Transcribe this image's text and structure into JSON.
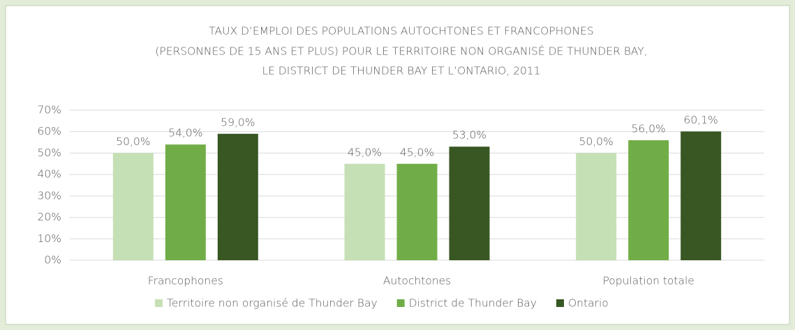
{
  "chart_data": {
    "type": "bar",
    "title": [
      "TAUX D’EMPLOI DES POPULATIONS AUTOCHTONES ET FRANCOPHONES",
      "(PERSONNES DE 15 ANS ET PLUS) POUR LE TERRITOIRE NON ORGANISÉ DE THUNDER BAY,",
      "LE DISTRICT DE THUNDER BAY ET L’ONTARIO, 2011"
    ],
    "categories": [
      "Francophones",
      "Autochtones",
      "Population totale"
    ],
    "series": [
      {
        "name": "Territoire non organisé de Thunder Bay",
        "color": "#c5e0b4",
        "values": [
          50.0,
          45.0,
          50.0
        ],
        "value_labels": [
          "50,0%",
          "45,0%",
          "50,0%"
        ]
      },
      {
        "name": "District de Thunder Bay",
        "color": "#70ad47",
        "values": [
          54.0,
          45.0,
          56.0
        ],
        "value_labels": [
          "54,0%",
          "45,0%",
          "56,0%"
        ]
      },
      {
        "name": "Ontario",
        "color": "#385723",
        "values": [
          59.0,
          53.0,
          60.1
        ],
        "value_labels": [
          "59,0%",
          "53,0%",
          "60,1%"
        ]
      }
    ],
    "ylim": [
      0,
      70
    ],
    "yticks": [
      {
        "value": 0,
        "label": "0%"
      },
      {
        "value": 10,
        "label": "10%"
      },
      {
        "value": 20,
        "label": "20%"
      },
      {
        "value": 30,
        "label": "30%"
      },
      {
        "value": 40,
        "label": "40%"
      },
      {
        "value": 50,
        "label": "50%"
      },
      {
        "value": 60,
        "label": "60%"
      },
      {
        "value": 70,
        "label": "70%"
      }
    ],
    "grid": true,
    "legend": "bottom"
  }
}
